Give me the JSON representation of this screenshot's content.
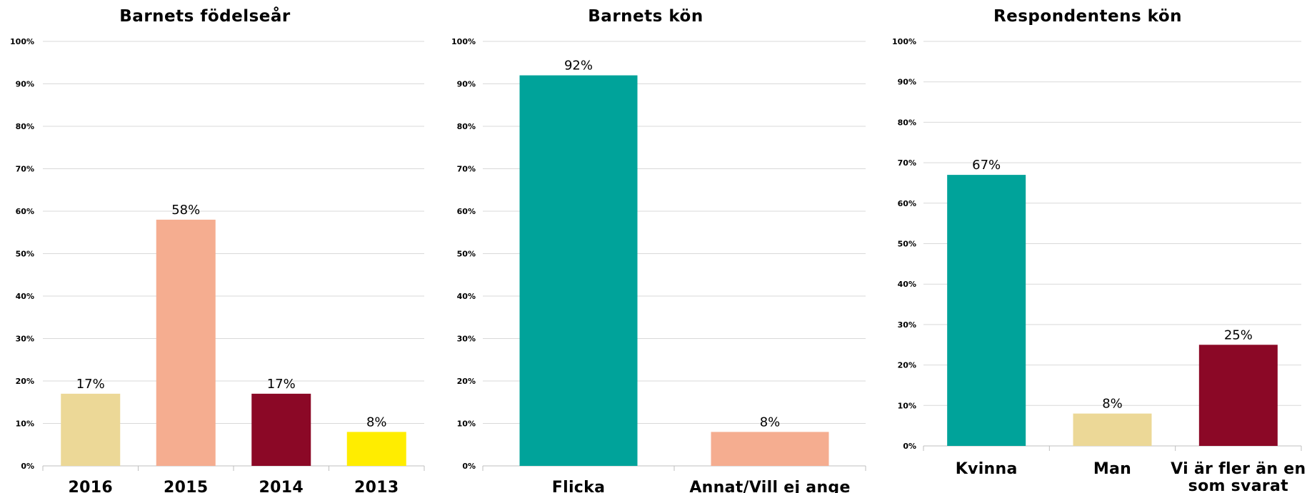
{
  "chart_data": [
    {
      "type": "bar",
      "title": "Barnets födelseår",
      "categories": [
        "2016",
        "2015",
        "2014",
        "2013"
      ],
      "values": [
        17,
        58,
        17,
        8
      ],
      "data_labels": [
        "17%",
        "58%",
        "17%",
        "8%"
      ],
      "colors": [
        "#ecd897",
        "#f5ad90",
        "#8b0826",
        "#ffed00"
      ],
      "ylim": [
        0,
        100
      ],
      "yticks": [
        "0%",
        "10%",
        "20%",
        "30%",
        "40%",
        "50%",
        "60%",
        "70%",
        "80%",
        "90%",
        "100%"
      ],
      "xlabel": "",
      "ylabel": "",
      "grid": true,
      "legend": "none"
    },
    {
      "type": "bar",
      "title": "Barnets kön",
      "categories": [
        "Flicka",
        "Annat/Vill ej ange"
      ],
      "values": [
        92,
        8
      ],
      "data_labels": [
        "92%",
        "8%"
      ],
      "colors": [
        "#00a39a",
        "#f5ad90"
      ],
      "ylim": [
        0,
        100
      ],
      "yticks": [
        "0%",
        "10%",
        "20%",
        "30%",
        "40%",
        "50%",
        "60%",
        "70%",
        "80%",
        "90%",
        "100%"
      ],
      "xlabel": "",
      "ylabel": "",
      "grid": true,
      "legend": "none"
    },
    {
      "type": "bar",
      "title": "Respondentens kön",
      "categories": [
        "Kvinna",
        "Man",
        "Vi är fler än en som svarat"
      ],
      "category_lines": [
        [
          "Kvinna"
        ],
        [
          "Man"
        ],
        [
          "Vi är fler än en",
          "som svarat"
        ]
      ],
      "values": [
        67,
        8,
        25
      ],
      "data_labels": [
        "67%",
        "8%",
        "25%"
      ],
      "colors": [
        "#00a39a",
        "#ecd897",
        "#8b0826"
      ],
      "ylim": [
        0,
        100
      ],
      "yticks": [
        "0%",
        "10%",
        "20%",
        "30%",
        "40%",
        "50%",
        "60%",
        "70%",
        "80%",
        "90%",
        "100%"
      ],
      "xlabel": "",
      "ylabel": "",
      "grid": true,
      "legend": "none"
    }
  ]
}
